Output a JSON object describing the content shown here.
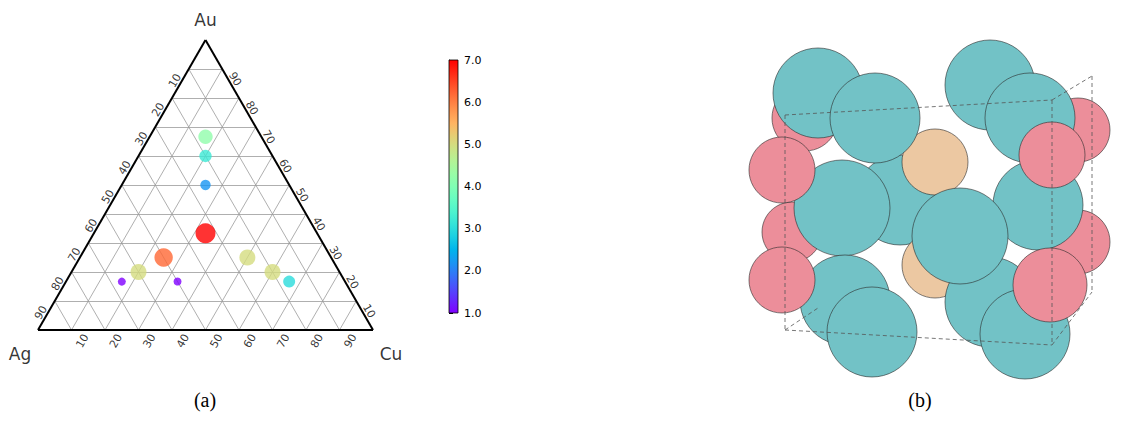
{
  "chart_data": {
    "type": "ternary_scatter",
    "corners": {
      "top": "Au",
      "left": "Ag",
      "right": "Cu"
    },
    "ticks": [
      10,
      20,
      30,
      40,
      50,
      60,
      70,
      80,
      90
    ],
    "grid": true,
    "marker": "circle",
    "points": {
      "Au": [
        66.7,
        60,
        50,
        33.3,
        25,
        25,
        20,
        20,
        16.7,
        16.7,
        16.7
      ],
      "Ag": [
        16.7,
        20,
        25,
        33.3,
        50,
        25,
        60,
        20,
        16.7,
        66.7,
        50
      ],
      "Cu": [
        16.7,
        20,
        25,
        33.3,
        25,
        50,
        20,
        60,
        66.7,
        16.7,
        33.3
      ],
      "values": [
        4.2,
        3.2,
        2.2,
        7.0,
        6.2,
        5.0,
        5.0,
        5.0,
        3.0,
        1.0,
        1.0
      ]
    },
    "colorbar": {
      "range": [
        1,
        7
      ],
      "ticks": [
        {
          "value": 1,
          "label": "1.0"
        },
        {
          "value": 2,
          "label": "2.0"
        },
        {
          "value": 3,
          "label": "3.0"
        },
        {
          "value": 4,
          "label": "4.0"
        },
        {
          "value": 5,
          "label": "5.0"
        },
        {
          "value": 6,
          "label": "6.0"
        },
        {
          "value": 7,
          "label": "7.0"
        }
      ]
    }
  },
  "captions": [
    "(a)",
    "(b)"
  ]
}
